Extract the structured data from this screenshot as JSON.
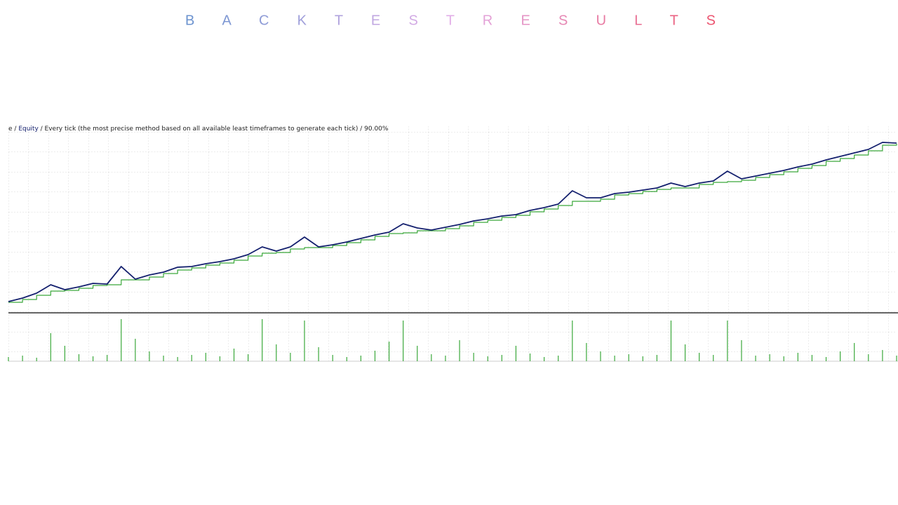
{
  "chart_data": {
    "type": "line",
    "title": "B A C K T E S T R E S U L T S",
    "caption_prefix": "e /",
    "caption_suffix": "/ Every tick (the most precise method based on all available least timeframes to generate each tick) / 90.00%",
    "ylim": [
      0,
      265
    ],
    "grid": true,
    "series": [
      {
        "name": "Equity",
        "color": "#14206e",
        "values": [
          15,
          20,
          27,
          39,
          32,
          36,
          41,
          40,
          65,
          47,
          53,
          57,
          64,
          65,
          69,
          72,
          76,
          82,
          93,
          87,
          93,
          107,
          93,
          96,
          100,
          105,
          110,
          114,
          126,
          120,
          117,
          121,
          125,
          130,
          133,
          137,
          139,
          145,
          149,
          154,
          173,
          163,
          163,
          169,
          171,
          174,
          177,
          184,
          179,
          184,
          187,
          201,
          190,
          194,
          198,
          202,
          207,
          211,
          217,
          222,
          227,
          232,
          242,
          241
        ]
      },
      {
        "color": "#3aa83a",
        "values": [
          14,
          18,
          24,
          30,
          31,
          34,
          38,
          39,
          46,
          46,
          50,
          55,
          60,
          63,
          67,
          70,
          74,
          80,
          84,
          85,
          90,
          92,
          92,
          95,
          99,
          103,
          108,
          112,
          113,
          116,
          116,
          119,
          123,
          128,
          131,
          135,
          138,
          143,
          147,
          152,
          158,
          158,
          161,
          167,
          169,
          172,
          175,
          177,
          177,
          182,
          185,
          186,
          188,
          192,
          196,
          200,
          205,
          209,
          215,
          219,
          224,
          230,
          238,
          240
        ]
      }
    ],
    "volume": {
      "color": "#3aa83a",
      "ylim": [
        0,
        65
      ],
      "values": [
        6,
        8,
        5,
        40,
        22,
        10,
        7,
        9,
        60,
        32,
        14,
        8,
        6,
        9,
        12,
        7,
        18,
        10,
        60,
        24,
        12,
        58,
        20,
        9,
        6,
        8,
        15,
        28,
        58,
        22,
        10,
        8,
        30,
        12,
        7,
        9,
        22,
        11,
        6,
        8,
        58,
        26,
        14,
        8,
        10,
        7,
        9,
        58,
        24,
        12,
        9,
        58,
        30,
        8,
        10,
        7,
        12,
        9,
        6,
        14,
        26,
        10,
        16,
        8
      ]
    }
  }
}
